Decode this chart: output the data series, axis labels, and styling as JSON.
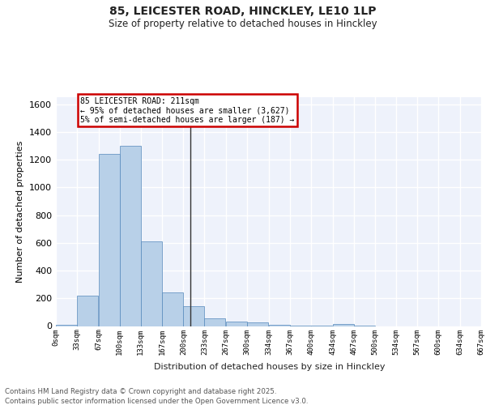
{
  "title_line1": "85, LEICESTER ROAD, HINCKLEY, LE10 1LP",
  "title_line2": "Size of property relative to detached houses in Hinckley",
  "xlabel": "Distribution of detached houses by size in Hinckley",
  "ylabel": "Number of detached properties",
  "footnote1": "Contains HM Land Registry data © Crown copyright and database right 2025.",
  "footnote2": "Contains public sector information licensed under the Open Government Licence v3.0.",
  "annotation_title": "85 LEICESTER ROAD: 211sqm",
  "annotation_line2": "← 95% of detached houses are smaller (3,627)",
  "annotation_line3": "5% of semi-detached houses are larger (187) →",
  "bar_color": "#b8d0e8",
  "bar_edge_color": "#5588bb",
  "vline_color": "#333333",
  "annotation_box_color": "#cc0000",
  "bins": [
    0,
    33,
    67,
    100,
    133,
    167,
    200,
    233,
    267,
    300,
    334,
    367,
    400,
    434,
    467,
    500,
    534,
    567,
    600,
    634,
    667
  ],
  "counts": [
    10,
    220,
    1240,
    1300,
    610,
    240,
    145,
    55,
    30,
    25,
    10,
    5,
    2,
    15,
    1,
    0,
    0,
    0,
    0,
    0
  ],
  "vline_x": 211,
  "ylim": [
    0,
    1650
  ],
  "yticks": [
    0,
    200,
    400,
    600,
    800,
    1000,
    1200,
    1400,
    1600
  ],
  "bg_color": "#eef2fb",
  "grid_color": "#ffffff",
  "tick_labels": [
    "0sqm",
    "33sqm",
    "67sqm",
    "100sqm",
    "133sqm",
    "167sqm",
    "200sqm",
    "233sqm",
    "267sqm",
    "300sqm",
    "334sqm",
    "367sqm",
    "400sqm",
    "434sqm",
    "467sqm",
    "500sqm",
    "534sqm",
    "567sqm",
    "600sqm",
    "634sqm",
    "667sqm"
  ]
}
